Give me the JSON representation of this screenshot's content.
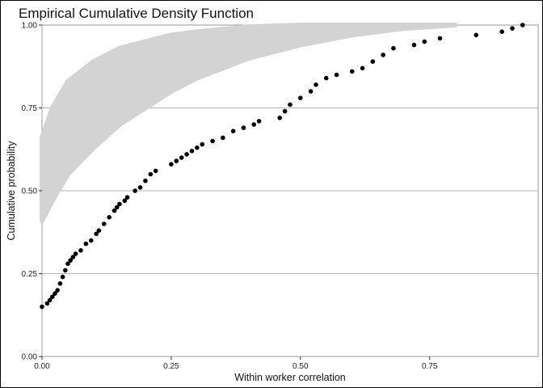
{
  "chart_data": {
    "type": "scatter",
    "title": "Empirical Cumulative Density Function",
    "xlabel": "Within worker correlation",
    "ylabel": "Cumulative probability",
    "xlim": [
      0,
      0.96
    ],
    "ylim": [
      0,
      1
    ],
    "x_ticks": [
      0,
      0.25,
      0.5,
      0.75
    ],
    "x_tick_labels": [
      "0.00",
      "0.25",
      "0.50",
      "0.75"
    ],
    "y_ticks": [
      0,
      0.25,
      0.5,
      0.75,
      1
    ],
    "y_tick_labels": [
      "0.00",
      "0.25",
      "0.50",
      "0.75",
      "1.00"
    ],
    "grid": "horizontal major lines",
    "legend": "none",
    "colors": {
      "observed": "#000000",
      "simulated": "#d3d3d3",
      "gridline": "#b3b3b3"
    },
    "simulated_band": {
      "x": [
        0,
        0.02,
        0.05,
        0.1,
        0.15,
        0.2,
        0.25,
        0.3,
        0.4,
        0.5,
        0.6,
        0.7,
        0.8
      ],
      "lower": [
        0.41,
        0.47,
        0.55,
        0.63,
        0.7,
        0.75,
        0.8,
        0.84,
        0.9,
        0.94,
        0.97,
        0.99,
        1.0
      ],
      "upper": [
        0.66,
        0.75,
        0.83,
        0.89,
        0.93,
        0.95,
        0.97,
        0.98,
        0.995,
        1.0,
        1.0,
        1.0,
        1.0
      ]
    },
    "series": [
      {
        "x": [
          0.0,
          0.01,
          0.015,
          0.02,
          0.025,
          0.03,
          0.035,
          0.04,
          0.045,
          0.05,
          0.055,
          0.06,
          0.065,
          0.075,
          0.085,
          0.095,
          0.105,
          0.11,
          0.12,
          0.13,
          0.14,
          0.145,
          0.15,
          0.16,
          0.165,
          0.18,
          0.19,
          0.2,
          0.21,
          0.22,
          0.25,
          0.26,
          0.27,
          0.28,
          0.29,
          0.3,
          0.31,
          0.33,
          0.35,
          0.37,
          0.39,
          0.41,
          0.42,
          0.46,
          0.47,
          0.48,
          0.5,
          0.52,
          0.53,
          0.55,
          0.57,
          0.6,
          0.62,
          0.64,
          0.66,
          0.68,
          0.72,
          0.74,
          0.77,
          0.84,
          0.89,
          0.91,
          0.93
        ],
        "y": [
          0.15,
          0.16,
          0.17,
          0.18,
          0.19,
          0.2,
          0.22,
          0.24,
          0.26,
          0.28,
          0.29,
          0.3,
          0.31,
          0.32,
          0.34,
          0.35,
          0.37,
          0.38,
          0.4,
          0.42,
          0.44,
          0.45,
          0.46,
          0.47,
          0.48,
          0.5,
          0.51,
          0.53,
          0.55,
          0.56,
          0.58,
          0.59,
          0.6,
          0.61,
          0.62,
          0.63,
          0.64,
          0.65,
          0.66,
          0.68,
          0.69,
          0.7,
          0.71,
          0.72,
          0.74,
          0.76,
          0.78,
          0.8,
          0.82,
          0.84,
          0.85,
          0.86,
          0.87,
          0.89,
          0.91,
          0.93,
          0.94,
          0.95,
          0.96,
          0.97,
          0.98,
          0.99,
          1.0
        ]
      }
    ]
  }
}
